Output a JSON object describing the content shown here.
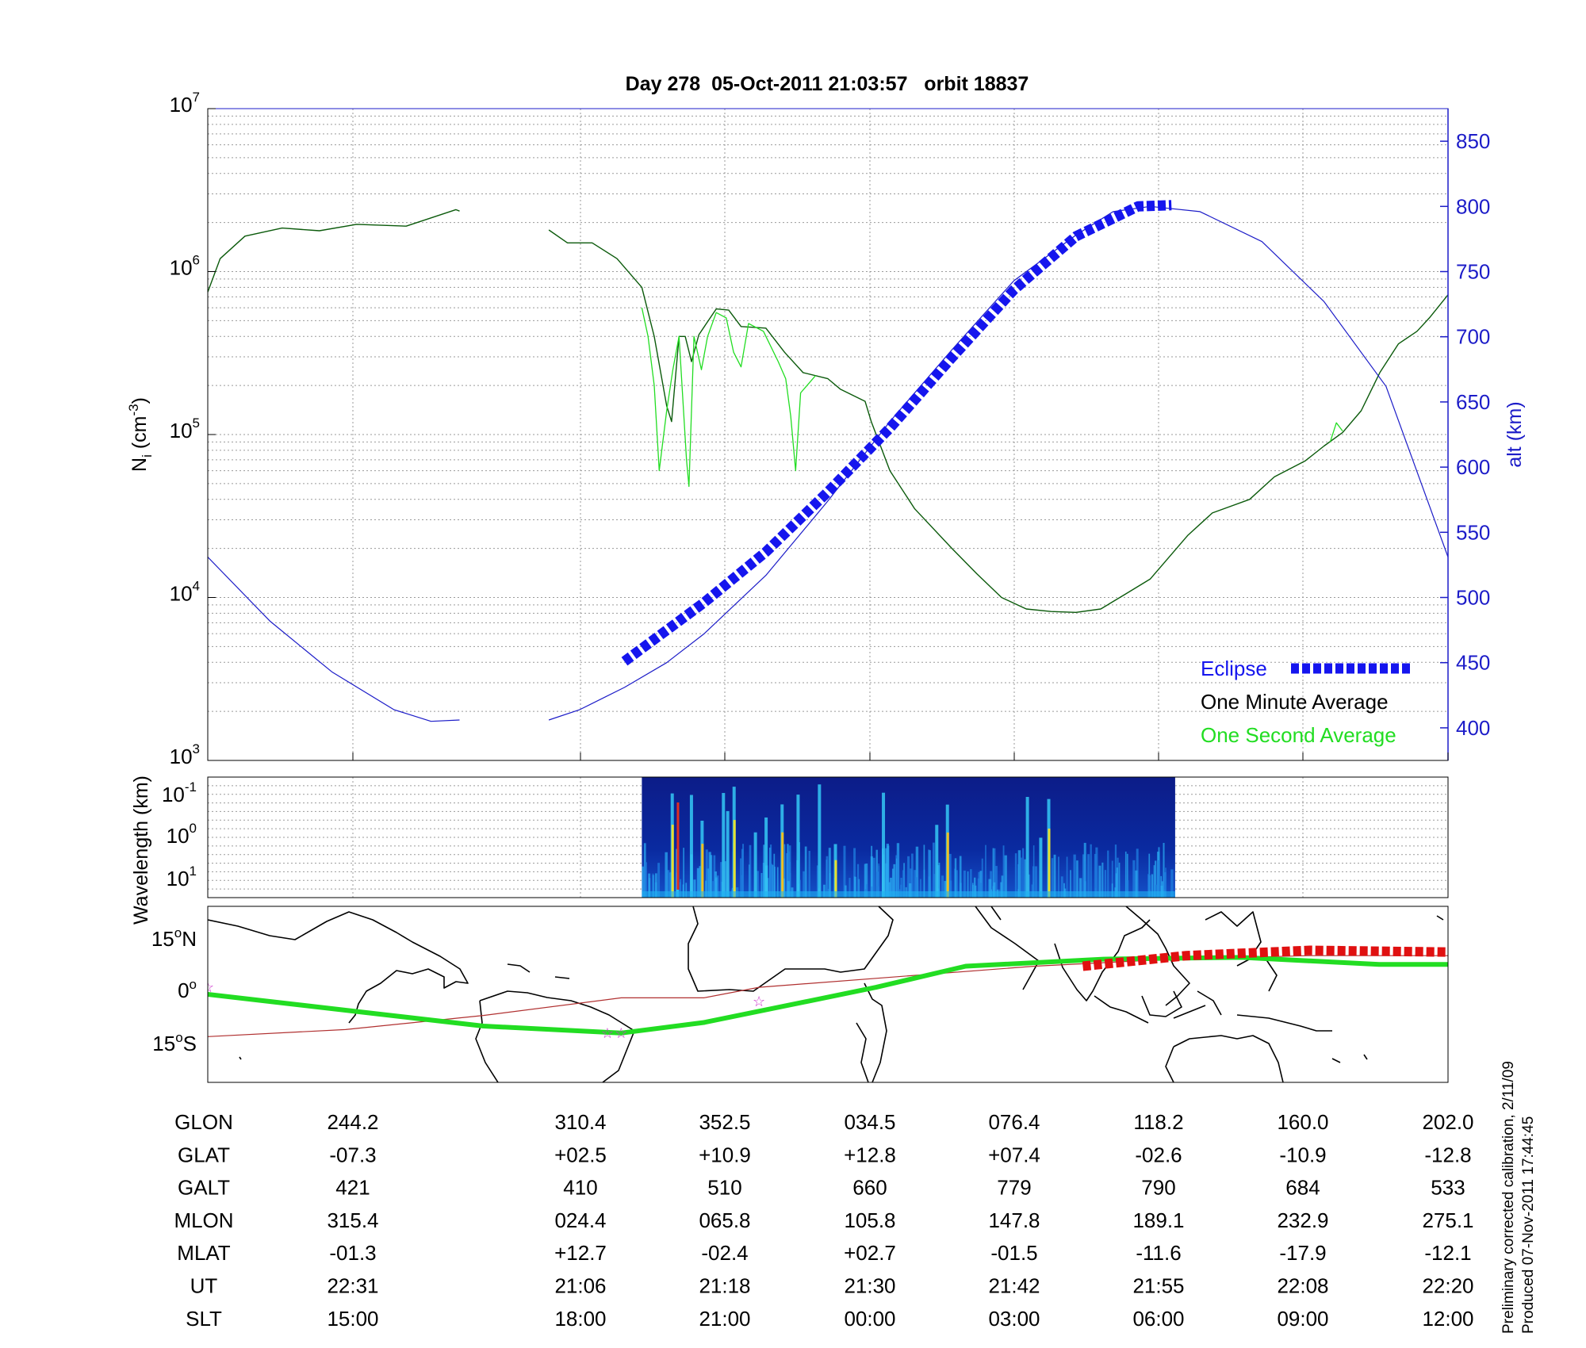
{
  "title": "Day 278  05-Oct-2011 21:03:57   orbit 18837",
  "colors": {
    "altitude": "#1c1cc8",
    "eclipse": "#1515ee",
    "minute_avg": "#0b5a0b",
    "second_avg": "#22dd22",
    "ground_track": "#22dd22",
    "eclipse_track": "#e01010",
    "dip_equator": "#b03030",
    "station_star": "#cc33cc",
    "grid": "#9a9a9a"
  },
  "chart_data": [
    {
      "type": "line",
      "panel": "density_altitude",
      "y_left": {
        "label_main": "N",
        "label_sub": "i",
        "label_unit": " (cm",
        "label_unit_sup": "-3",
        "label_close": ")",
        "scale": "log",
        "ylim": [
          1000,
          10000000
        ],
        "ticks": [
          {
            "base": "10",
            "exp": "3",
            "value": 1000
          },
          {
            "base": "10",
            "exp": "4",
            "value": 10000
          },
          {
            "base": "10",
            "exp": "5",
            "value": 100000
          },
          {
            "base": "10",
            "exp": "6",
            "value": 1000000
          },
          {
            "base": "10",
            "exp": "7",
            "value": 10000000
          }
        ]
      },
      "y_right": {
        "label": "alt (km)",
        "ylim": [
          375,
          875
        ],
        "ticks": [
          "400",
          "450",
          "500",
          "550",
          "600",
          "650",
          "700",
          "750",
          "800",
          "850"
        ]
      },
      "legend": {
        "position": "bottom-right",
        "entries": [
          "Eclipse",
          "One Minute Average",
          "One Second Average"
        ]
      },
      "series": [
        {
          "name": "One Minute Average",
          "segments": [
            [
              [
                0,
                750000.0
              ],
              [
                0.01,
                1200000.0
              ],
              [
                0.03,
                1650000.0
              ],
              [
                0.06,
                1850000.0
              ],
              [
                0.09,
                1780000.0
              ],
              [
                0.12,
                1950000.0
              ],
              [
                0.16,
                1900000.0
              ],
              [
                0.2,
                2400000.0
              ],
              [
                0.203,
                2350000.0
              ]
            ],
            [
              [
                0.275,
                1800000.0
              ],
              [
                0.29,
                1500000.0
              ],
              [
                0.31,
                1500000.0
              ],
              [
                0.33,
                1200000.0
              ],
              [
                0.35,
                800000.0
              ],
              [
                0.36,
                400000.0
              ],
              [
                0.37,
                150000.0
              ],
              [
                0.374,
                120000.0
              ],
              [
                0.38,
                400000.0
              ],
              [
                0.385,
                400000.0
              ],
              [
                0.39,
                280000.0
              ],
              [
                0.396,
                410000.0
              ],
              [
                0.41,
                590000.0
              ],
              [
                0.42,
                580000.0
              ],
              [
                0.43,
                460000.0
              ],
              [
                0.45,
                450000.0
              ],
              [
                0.465,
                320000.0
              ],
              [
                0.48,
                240000.0
              ],
              [
                0.5,
                220000.0
              ],
              [
                0.51,
                190000.0
              ],
              [
                0.53,
                160000.0
              ],
              [
                0.535,
                120000.0
              ],
              [
                0.55,
                60000.0
              ],
              [
                0.57,
                35000.0
              ],
              [
                0.6,
                20000.0
              ],
              [
                0.62,
                14000.0
              ],
              [
                0.64,
                10000.0
              ],
              [
                0.66,
                8500.0
              ],
              [
                0.68,
                8200.0
              ],
              [
                0.7,
                8100.0
              ],
              [
                0.72,
                8500.0
              ],
              [
                0.74,
                10500.0
              ],
              [
                0.76,
                13000.0
              ],
              [
                0.79,
                24000.0
              ],
              [
                0.81,
                33000.0
              ],
              [
                0.84,
                40000.0
              ],
              [
                0.86,
                55000.0
              ],
              [
                0.885,
                69000.0
              ],
              [
                0.9,
                85000.0
              ],
              [
                0.915,
                103000.0
              ],
              [
                0.93,
                140000.0
              ],
              [
                0.945,
                240000.0
              ],
              [
                0.96,
                360000.0
              ],
              [
                0.975,
                430000.0
              ],
              [
                0.985,
                520000.0
              ],
              [
                1,
                720000.0
              ]
            ]
          ]
        },
        {
          "name": "One Second Average",
          "segments": [
            [
              [
                0.35,
                600000.0
              ],
              [
                0.355,
                400000.0
              ],
              [
                0.36,
                200000.0
              ],
              [
                0.364,
                60000.0
              ],
              [
                0.37,
                140000.0
              ],
              [
                0.375,
                250000.0
              ],
              [
                0.38,
                400000.0
              ],
              [
                0.386,
                70000.0
              ],
              [
                0.388,
                48000.0
              ],
              [
                0.392,
                400000.0
              ],
              [
                0.398,
                250000.0
              ],
              [
                0.403,
                400000.0
              ],
              [
                0.41,
                560000.0
              ],
              [
                0.418,
                520000.0
              ],
              [
                0.424,
                320000.0
              ],
              [
                0.43,
                260000.0
              ],
              [
                0.436,
                480000.0
              ],
              [
                0.448,
                430000.0
              ],
              [
                0.46,
                280000.0
              ],
              [
                0.466,
                220000.0
              ],
              [
                0.47,
                130000.0
              ],
              [
                0.474,
                60000.0
              ],
              [
                0.478,
                180000.0
              ],
              [
                0.49,
                230000.0
              ]
            ],
            [
              [
                0.905,
                90000.0
              ],
              [
                0.91,
                118000.0
              ],
              [
                0.915,
                105000.0
              ]
            ]
          ]
        },
        {
          "name": "Altitude (km)",
          "segments": [
            [
              [
                0,
                531
              ],
              [
                0.05,
                482
              ],
              [
                0.1,
                443
              ],
              [
                0.15,
                414
              ],
              [
                0.18,
                405
              ],
              [
                0.203,
                406
              ]
            ],
            [
              [
                0.275,
                406
              ],
              [
                0.3,
                414
              ],
              [
                0.336,
                431
              ],
              [
                0.37,
                450
              ],
              [
                0.4,
                472
              ],
              [
                0.45,
                517
              ],
              [
                0.5,
                574
              ],
              [
                0.55,
                635
              ],
              [
                0.6,
                690
              ],
              [
                0.65,
                743
              ],
              [
                0.7,
                778
              ],
              [
                0.73,
                796
              ],
              [
                0.76,
                800
              ],
              [
                0.8,
                796
              ],
              [
                0.85,
                773
              ],
              [
                0.9,
                727
              ],
              [
                0.95,
                662
              ],
              [
                1,
                531
              ]
            ]
          ]
        },
        {
          "name": "Eclipse",
          "segments": [
            [
              [
                0.336,
                451
              ],
              [
                0.4,
                496
              ],
              [
                0.45,
                535
              ],
              [
                0.5,
                581
              ],
              [
                0.55,
                630
              ],
              [
                0.6,
                684
              ],
              [
                0.65,
                736
              ],
              [
                0.7,
                777
              ],
              [
                0.75,
                800
              ],
              [
                0.777,
                801
              ]
            ]
          ]
        }
      ]
    },
    {
      "type": "heatmap",
      "panel": "spectrogram",
      "y_label": "Wavelength (km)",
      "y_ticks": [
        {
          "base": "10",
          "exp": "-1"
        },
        {
          "base": "10",
          "exp": "0"
        },
        {
          "base": "10",
          "exp": "1"
        }
      ],
      "x_extent": [
        0.35,
        0.78
      ],
      "low_amplitude_color": "#0a1e8c"
    },
    {
      "type": "map",
      "panel": "ground_track",
      "y_ticks": [
        {
          "value": "15",
          "deg": "o",
          "hemi": "N"
        },
        {
          "value": "0",
          "deg": "o",
          "hemi": ""
        },
        {
          "value": "15",
          "deg": "o",
          "hemi": "S"
        }
      ],
      "lon_range": [
        210,
        390
      ],
      "lat_range": [
        -25,
        25
      ],
      "ground_track": [
        [
          210,
          0
        ],
        [
          250,
          -9
        ],
        [
          270,
          -11
        ],
        [
          282,
          -8
        ],
        [
          307,
          2
        ],
        [
          320,
          8
        ],
        [
          340,
          10
        ],
        [
          360,
          10.5
        ],
        [
          380,
          8.5
        ],
        [
          400,
          8.5
        ],
        [
          420,
          8
        ],
        [
          440,
          8
        ],
        [
          460,
          8
        ],
        [
          480,
          5
        ],
        [
          500,
          2
        ],
        [
          517,
          0
        ]
      ],
      "eclipse_track": [
        [
          337,
          8
        ],
        [
          352,
          11
        ],
        [
          370,
          12.5
        ],
        [
          390,
          12
        ],
        [
          402,
          10
        ],
        [
          420,
          5.5
        ],
        [
          428,
          3
        ]
      ],
      "dip_equator": [
        [
          210,
          -12
        ],
        [
          230,
          -10
        ],
        [
          250,
          -6
        ],
        [
          270,
          -1
        ],
        [
          282,
          -1
        ],
        [
          290,
          2
        ],
        [
          310,
          5
        ],
        [
          330,
          8
        ],
        [
          350,
          10
        ],
        [
          370,
          11
        ],
        [
          390,
          11
        ],
        [
          410,
          10
        ],
        [
          420,
          6
        ],
        [
          440,
          2
        ],
        [
          455,
          -3
        ],
        [
          470,
          -8
        ],
        [
          490,
          -12
        ],
        [
          517,
          -12
        ]
      ],
      "stars": [
        [
          210,
          2
        ],
        [
          270,
          -11
        ],
        [
          268,
          -11
        ],
        [
          290,
          -2
        ],
        [
          462,
          13
        ],
        [
          482,
          9
        ]
      ]
    },
    {
      "type": "table",
      "panel": "orbit_parameters",
      "row_labels": [
        "GLON",
        "GLAT",
        "GALT",
        "MLON",
        "MLAT",
        "UT",
        "SLT"
      ],
      "columns": [
        [
          "244.2",
          "-07.3",
          "421",
          "315.4",
          "-01.3",
          "22:31",
          "15:00"
        ],
        [
          "310.4",
          "+02.5",
          "410",
          "024.4",
          "+12.7",
          "21:06",
          "18:00"
        ],
        [
          "352.5",
          "+10.9",
          "510",
          "065.8",
          "-02.4",
          "21:18",
          "21:00"
        ],
        [
          "034.5",
          "+12.8",
          "660",
          "105.8",
          "+02.7",
          "21:30",
          "00:00"
        ],
        [
          "076.4",
          "+07.4",
          "779",
          "147.8",
          "-01.5",
          "21:42",
          "03:00"
        ],
        [
          "118.2",
          "-02.6",
          "790",
          "189.1",
          "-11.6",
          "21:55",
          "06:00"
        ],
        [
          "160.0",
          "-10.9",
          "684",
          "232.9",
          "-17.9",
          "22:08",
          "09:00"
        ],
        [
          "202.0",
          "-12.8",
          "533",
          "275.1",
          "-12.1",
          "22:20",
          "12:00"
        ]
      ]
    }
  ],
  "footer": {
    "line1": "Preliminary corrected calibration, 2/11/09",
    "line2": "Produced 07-Nov-2011 17:44:45"
  }
}
